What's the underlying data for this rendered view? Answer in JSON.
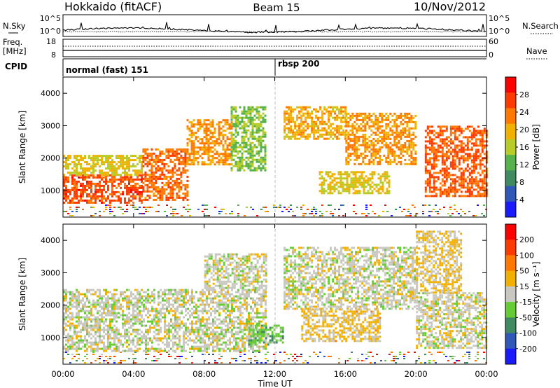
{
  "header": {
    "station": "Hokkaido (fitACF)",
    "beam": "Beam 15",
    "date": "10/Nov/2012"
  },
  "noise_panel": {
    "left_label": "N.Sky",
    "right_label": "N.Search",
    "left_ticks": [
      "10^5",
      "10^0"
    ],
    "right_ticks": [
      "10^5",
      "10^0"
    ]
  },
  "freq_panel": {
    "left_label_line1": "Freq.",
    "left_label_line2": "[MHz]",
    "left_ticks": [
      "18",
      "8"
    ],
    "right_label": "Nave",
    "right_ticks": [
      "60",
      "0"
    ]
  },
  "cpid": {
    "label": "CPID",
    "segments": [
      {
        "start_hour": 0,
        "text": "normal (fast) 151"
      },
      {
        "start_hour": 12,
        "text": "rbsp 200"
      }
    ]
  },
  "colors": {
    "power_scale": [
      "#1a1aff",
      "#2f58b8",
      "#3f8a60",
      "#56b24a",
      "#b8cc28",
      "#f2b000",
      "#ff7800",
      "#ff3a00",
      "#ff0000"
    ],
    "velocity_scale": [
      "#1a1aff",
      "#2f58b8",
      "#3f8a60",
      "#66cc33",
      "#c8c8c0",
      "#f2b000",
      "#ff7800",
      "#ff3a00",
      "#ff0000"
    ]
  },
  "chart_data": [
    {
      "type": "heatmap",
      "panel": "power",
      "xlabel": "Time UT",
      "ylabel": "Slant Range [km]",
      "xlim_hours": [
        0,
        24
      ],
      "x_ticks": [
        "00:00",
        "04:00",
        "08:00",
        "12:00",
        "16:00",
        "20:00",
        "00:00"
      ],
      "ylim": [
        180,
        4500
      ],
      "y_ticks": [
        1000,
        2000,
        3000,
        4000
      ],
      "colorbar": {
        "label": "Power [dB]",
        "ticks": [
          "28",
          "24",
          "20",
          "16",
          "12",
          "8",
          "4"
        ],
        "range": [
          0,
          32
        ]
      },
      "regions": [
        {
          "t0": 0.0,
          "t1": 4.5,
          "r0": 650,
          "r1": 1500,
          "value": 26
        },
        {
          "t0": 0.0,
          "t1": 4.5,
          "r0": 1500,
          "r1": 2100,
          "value": 18
        },
        {
          "t0": 4.5,
          "t1": 7.0,
          "r0": 700,
          "r1": 2300,
          "value": 24
        },
        {
          "t0": 7.0,
          "t1": 9.5,
          "r0": 1800,
          "r1": 3200,
          "value": 22
        },
        {
          "t0": 9.5,
          "t1": 11.5,
          "r0": 1600,
          "r1": 3600,
          "value": 14
        },
        {
          "t0": 12.5,
          "t1": 16.0,
          "r0": 2600,
          "r1": 3600,
          "value": 20
        },
        {
          "t0": 14.5,
          "t1": 18.5,
          "r0": 900,
          "r1": 1600,
          "value": 18
        },
        {
          "t0": 16.0,
          "t1": 20.0,
          "r0": 1800,
          "r1": 3400,
          "value": 22
        },
        {
          "t0": 20.5,
          "t1": 24.0,
          "r0": 800,
          "r1": 3000,
          "value": 25
        }
      ]
    },
    {
      "type": "heatmap",
      "panel": "velocity",
      "xlabel": "Time UT",
      "ylabel": "Slant Range [km]",
      "xlim_hours": [
        0,
        24
      ],
      "x_ticks": [
        "00:00",
        "04:00",
        "08:00",
        "12:00",
        "16:00",
        "20:00",
        "00:00"
      ],
      "ylim": [
        180,
        4500
      ],
      "y_ticks": [
        1000,
        2000,
        3000,
        4000
      ],
      "colorbar": {
        "label": "Velocity [m s⁻¹]",
        "ticks": [
          "200",
          "100",
          "50",
          "15",
          "-15",
          "-50",
          "-100",
          "-200"
        ],
        "range": [
          -250,
          250
        ]
      },
      "regions": [
        {
          "t0": 0.0,
          "t1": 11.5,
          "r0": 600,
          "r1": 2500,
          "value": 0
        },
        {
          "t0": 8.0,
          "t1": 11.5,
          "r0": 2500,
          "r1": 3600,
          "value": 0
        },
        {
          "t0": 10.5,
          "t1": 12.5,
          "r0": 800,
          "r1": 1400,
          "value": -60
        },
        {
          "t0": 12.5,
          "t1": 20.0,
          "r0": 1900,
          "r1": 3800,
          "value": 0
        },
        {
          "t0": 13.5,
          "t1": 18.0,
          "r0": 900,
          "r1": 1900,
          "value": 40
        },
        {
          "t0": 20.0,
          "t1": 24.0,
          "r0": 700,
          "r1": 2400,
          "value": 0
        },
        {
          "t0": 20.0,
          "t1": 22.5,
          "r0": 2400,
          "r1": 4300,
          "value": 30
        }
      ]
    }
  ]
}
